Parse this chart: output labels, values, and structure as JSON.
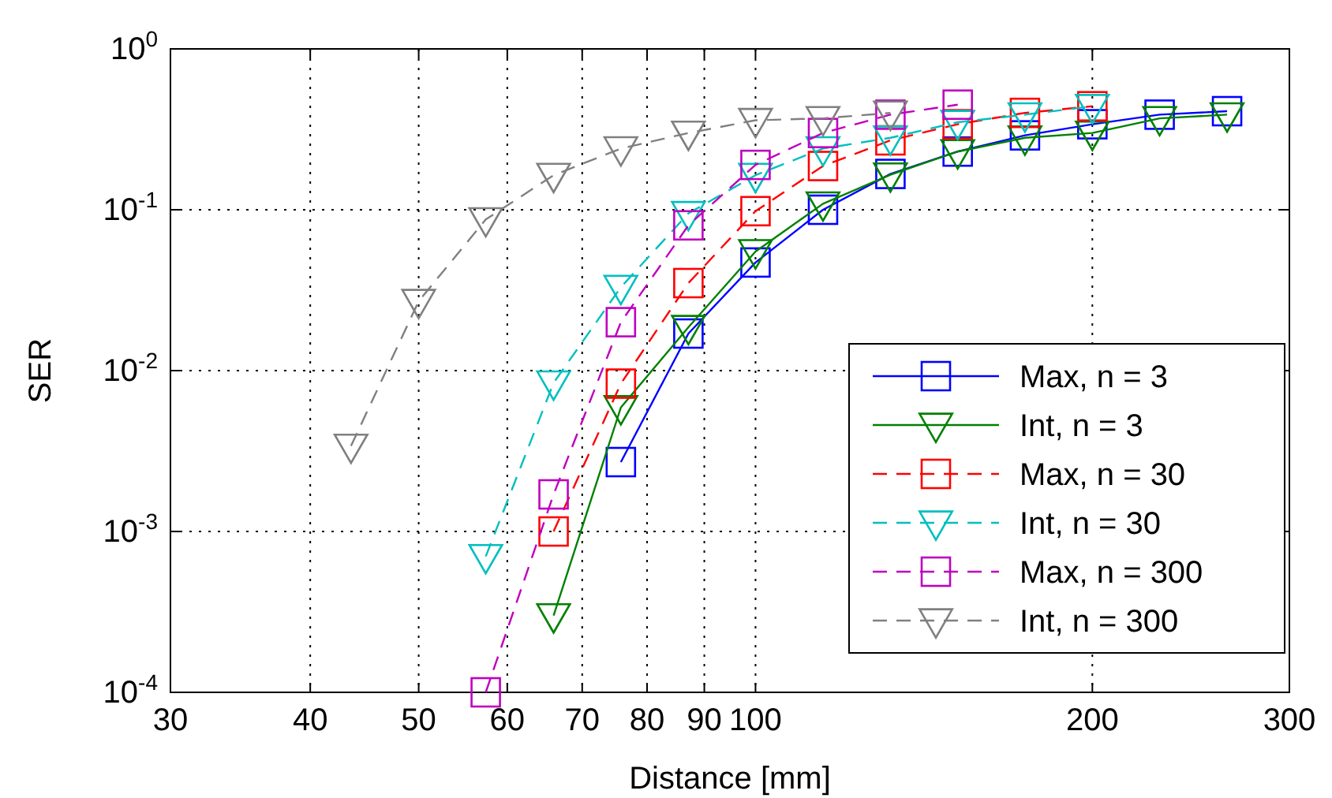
{
  "chart_data": {
    "type": "line",
    "xlabel": "Distance [mm]",
    "ylabel": "SER",
    "log": "xy",
    "grid": true,
    "legend": "bottom right",
    "xlim": [
      30,
      300
    ],
    "xticks": [
      30,
      40,
      50,
      60,
      70,
      80,
      90,
      100,
      200,
      300
    ],
    "ylim": [
      0.0001,
      1
    ],
    "yticks": [
      {
        "value": 0.0001,
        "label": "10$^{-4}$"
      },
      {
        "value": 0.001,
        "label": "10$^{-3}$"
      },
      {
        "value": 0.01,
        "label": "10$^{-2}$"
      },
      {
        "value": 0.1,
        "label": "10$^{-1}$"
      },
      {
        "value": 1,
        "label": "10$^{0}$"
      }
    ],
    "series": [
      {
        "name": "Max, n = 3",
        "color": "#0000ff",
        "marker": "square",
        "line_style": "solid",
        "x": [
          75.8,
          87.1,
          100,
          114.9,
          132,
          151.6,
          174.1,
          200,
          229.7,
          263.9
        ],
        "values": [
          0.0027,
          0.017,
          0.047,
          0.1,
          0.167,
          0.23,
          0.29,
          0.34,
          0.39,
          0.41
        ]
      },
      {
        "name": "Int, n = 3",
        "color": "#008000",
        "marker": "triangle",
        "line_style": "solid",
        "x": [
          66,
          75.8,
          87.1,
          100,
          114.9,
          132,
          151.6,
          174.1,
          200,
          229.7,
          263.9
        ],
        "values": [
          0.0003,
          0.0059,
          0.0186,
          0.055,
          0.109,
          0.165,
          0.23,
          0.28,
          0.3,
          0.37,
          0.39
        ]
      },
      {
        "name": "Max, n = 30",
        "color": "#ff0000",
        "marker": "square",
        "line_style": "dashed",
        "x": [
          66,
          75.8,
          87.1,
          100,
          114.9,
          132,
          151.6,
          174.1,
          200
        ],
        "values": [
          0.001,
          0.0083,
          0.035,
          0.098,
          0.187,
          0.27,
          0.34,
          0.4,
          0.44
        ]
      },
      {
        "name": "Int, n = 30",
        "color": "#00bfbf",
        "marker": "triangle",
        "line_style": "dashed",
        "x": [
          57.4,
          66,
          75.8,
          87.1,
          100,
          114.9,
          132,
          151.6,
          174.1,
          200
        ],
        "values": [
          0.0007,
          0.0084,
          0.033,
          0.095,
          0.164,
          0.24,
          0.28,
          0.35,
          0.39,
          0.44
        ]
      },
      {
        "name": "Max, n = 300",
        "color": "#bf00bf",
        "marker": "square",
        "line_style": "dashed",
        "x": [
          57.4,
          66,
          75.8,
          87.1,
          100,
          114.9,
          132,
          151.6
        ],
        "values": [
          0.0001,
          0.0017,
          0.02,
          0.08,
          0.19,
          0.3,
          0.39,
          0.45
        ]
      },
      {
        "name": "Int, n = 300",
        "color": "#808080",
        "marker": "triangle",
        "line_style": "dashed",
        "x": [
          43.5,
          50,
          57.4,
          66,
          75.8,
          87.1,
          100,
          114.9,
          132
        ],
        "values": [
          0.0034,
          0.027,
          0.087,
          0.164,
          0.24,
          0.3,
          0.36,
          0.37,
          0.4
        ]
      }
    ]
  }
}
